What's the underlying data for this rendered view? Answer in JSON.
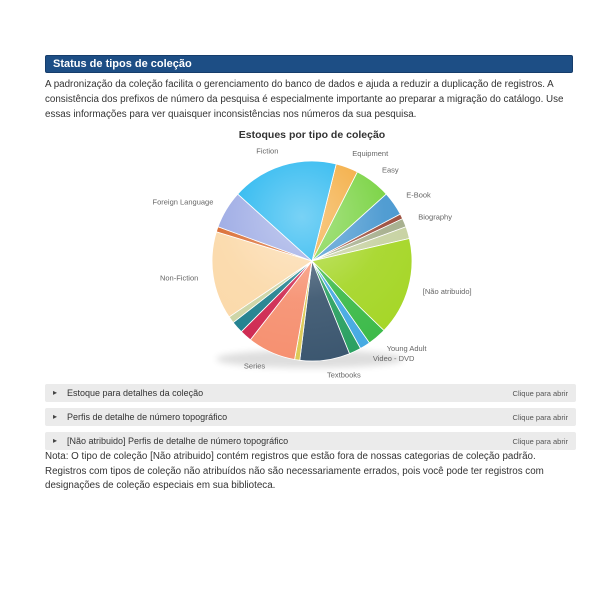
{
  "page": {
    "header": {
      "title": "Status de tipos de coleção"
    },
    "intro": "A padronização da coleção facilita o gerenciamento do banco de dados e ajuda a reduzir a duplicação de registros. A consistência dos prefixos de número da pesquisa é especialmente importante ao preparar a migração do catálogo. Use essas informações para ver quaisquer inconsistências nos números da sua pesquisa.",
    "accordions": [
      {
        "label": "Estoque para detalhes da coleção",
        "action": "Clique para abrir"
      },
      {
        "label": "Perfis de detalhe de número topográfico",
        "action": "Clique para abrir"
      },
      {
        "label": "[Não atribuido] Perfis de detalhe de número topográfico",
        "action": "Clique para abrir"
      }
    ],
    "note": "Nota: O tipo de coleção [Não atribuido] contém registros que estão fora de nossas categorias de coleção padrão. Registros com tipos de coleção não atribuídos não são necessariamente errados, pois você pode ter registros com designações de coleção especiais em sua biblioteca.",
    "colors": {
      "header_bg": "#1d4e85",
      "header_text": "#ffffff",
      "accordion_bg": "#ebebeb"
    }
  },
  "chart_data": {
    "type": "pie",
    "title": "Estoques por tipo de coleção",
    "legend_position": "labels-around-pie",
    "units": "degrees of 360, estimated from pixels",
    "start_angle": 14,
    "slices": [
      {
        "label": "Equipment",
        "value": 13,
        "color": "#f3a93a"
      },
      {
        "label": "Easy",
        "value": 21,
        "color": "#77d23f"
      },
      {
        "label": "E-Book",
        "value": 14,
        "color": "#4596cf"
      },
      {
        "label": "",
        "value": 3,
        "color": "#9a4a38"
      },
      {
        "label": "Biography",
        "value": 5,
        "color": "#a4ad8a"
      },
      {
        "label": "",
        "value": 7,
        "color": "#c6d1a0"
      },
      {
        "label": "[Não atribuido]",
        "value": 57,
        "color": "#a5d626"
      },
      {
        "label": "Young Adult",
        "value": 11,
        "color": "#3cba49"
      },
      {
        "label": "Video - DVD",
        "value": 6,
        "color": "#45a9e2"
      },
      {
        "label": "",
        "value": 7,
        "color": "#2aa061"
      },
      {
        "label": "Textbooks",
        "value": 29,
        "color": "#3b566f"
      },
      {
        "label": "",
        "value": 3,
        "color": "#ddca55"
      },
      {
        "label": "Series",
        "value": 28,
        "color": "#f69070"
      },
      {
        "label": "",
        "value": 7,
        "color": "#ce2850"
      },
      {
        "label": "",
        "value": 7,
        "color": "#1f808e"
      },
      {
        "label": "",
        "value": 4,
        "color": "#ccd4a4"
      },
      {
        "label": "Non-Fiction",
        "value": 51,
        "color": "#fbd9a9"
      },
      {
        "label": "",
        "value": 3,
        "color": "#d96a2f"
      },
      {
        "label": "Foreign Language",
        "value": 22,
        "color": "#9ba9e4"
      },
      {
        "label": "Fiction",
        "value": 62,
        "color": "#1fb4ef"
      }
    ]
  }
}
